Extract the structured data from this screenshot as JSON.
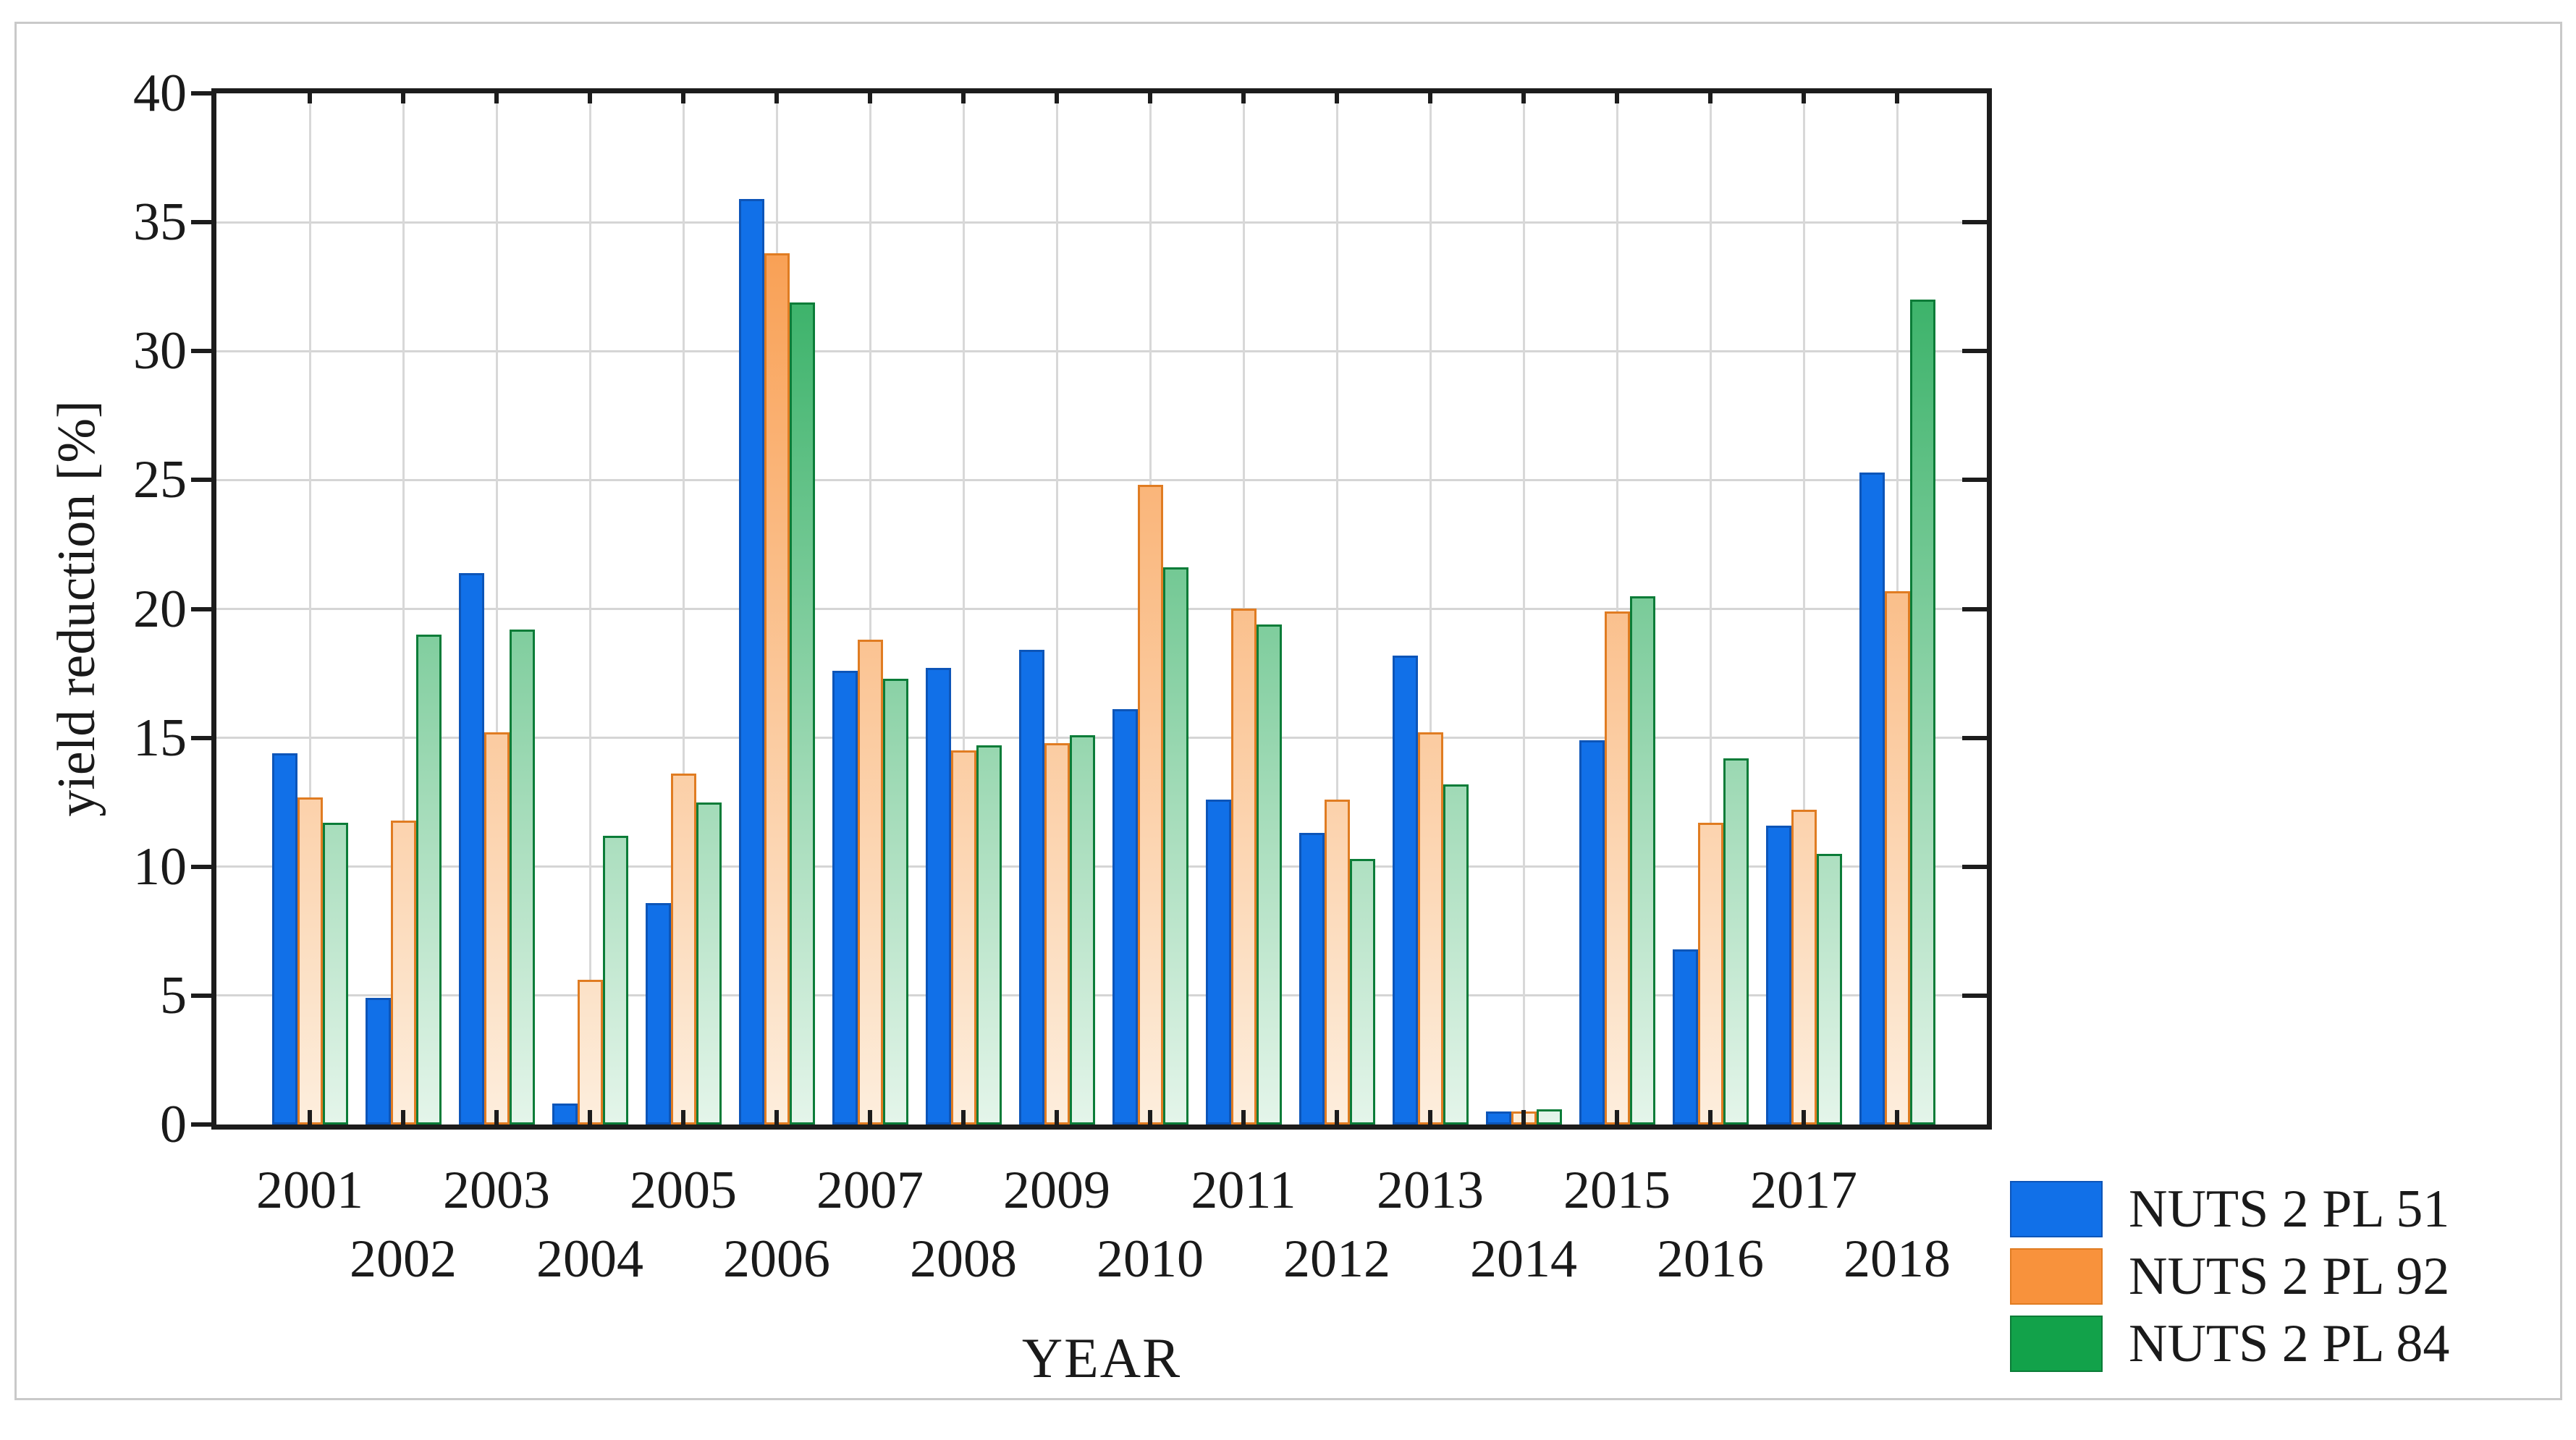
{
  "figure": {
    "background": "#ffffff",
    "frame_color": "#c9c9c9",
    "axis_color": "#1c1c1c",
    "gridline_color": "#d5d5d5",
    "text_color": "#1a1a1a"
  },
  "chart_data": {
    "type": "bar",
    "title": "",
    "xlabel": "YEAR",
    "ylabel": "yield reduction [%]",
    "ylim": [
      0,
      40
    ],
    "yticks": [
      0,
      5,
      10,
      15,
      20,
      25,
      30,
      35,
      40
    ],
    "grid": true,
    "legend_position": "bottom-right",
    "categories": [
      "2001",
      "2002",
      "2003",
      "2004",
      "2005",
      "2006",
      "2007",
      "2008",
      "2009",
      "2010",
      "2011",
      "2012",
      "2013",
      "2014",
      "2015",
      "2016",
      "2017",
      "2018"
    ],
    "series": [
      {
        "name": "NUTS 2 PL 51",
        "color": "#1170e8",
        "color_light": "#1170e8",
        "border_color": "#0d55b8",
        "gradient": false,
        "values": [
          14.4,
          4.9,
          21.4,
          0.8,
          8.6,
          35.9,
          17.6,
          17.7,
          18.4,
          16.1,
          12.6,
          11.3,
          18.2,
          0.5,
          14.9,
          6.8,
          11.6,
          25.3
        ]
      },
      {
        "name": "NUTS 2 PL 92",
        "color": "#f8923c",
        "color_light": "#fdeedd",
        "border_color": "#e07c22",
        "gradient": true,
        "values": [
          12.7,
          11.8,
          15.2,
          5.6,
          13.6,
          33.8,
          18.8,
          14.5,
          14.8,
          24.8,
          20.0,
          12.6,
          15.2,
          0.5,
          19.9,
          11.7,
          12.2,
          20.7
        ]
      },
      {
        "name": "NUTS 2 PL 84",
        "color": "#12a24a",
        "color_light": "#e4f5ea",
        "border_color": "#0b7c38",
        "gradient": true,
        "values": [
          11.7,
          19.0,
          19.2,
          11.2,
          12.5,
          31.9,
          17.3,
          14.7,
          15.1,
          21.6,
          19.4,
          10.3,
          13.2,
          0.6,
          20.5,
          14.2,
          10.5,
          32.0
        ]
      }
    ]
  }
}
